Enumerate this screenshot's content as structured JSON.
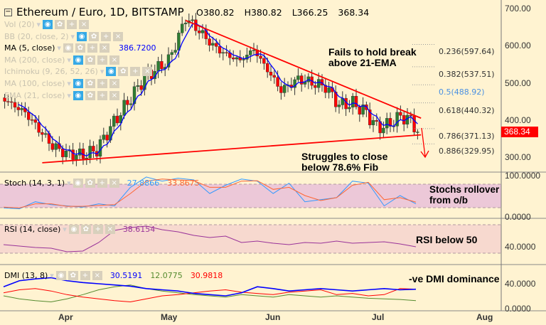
{
  "header": {
    "title": "Ethereum / Euro, 1D, BITSTAMP",
    "open": "O380.82",
    "high": "H380.82",
    "low": "L366.25",
    "close": "368.34"
  },
  "legend": [
    {
      "label": "Vol (20)",
      "active": false,
      "value": ""
    },
    {
      "label": "BB (20, close, 2)",
      "active": false,
      "value": ""
    },
    {
      "label": "MA (5, close)",
      "active": true,
      "value": "386.7200"
    },
    {
      "label": "MA (200, close)",
      "active": false,
      "value": ""
    },
    {
      "label": "Ichimoku (9, 26, 52, 26)",
      "active": false,
      "value": ""
    },
    {
      "label": "MA (100, close)",
      "active": false,
      "value": ""
    },
    {
      "label": "EMA (21, close)",
      "active": false,
      "value": ""
    }
  ],
  "colors": {
    "up": "#2e7d32",
    "down": "#ff0000",
    "ma": "#0000ff",
    "trendline": "#ff0000",
    "fib05": "#4a90e2",
    "stochK": "#3399ff",
    "stochD": "#ff6633",
    "rsi": "#993399",
    "dmi_adx": "#0000ff",
    "dmi_plus": "#558b2f",
    "dmi_minus": "#ff0000",
    "price_badge": "#ff0000"
  },
  "price_axis": {
    "ticks": [
      "700.00",
      "600.00",
      "500.00",
      "400.00",
      "300.00"
    ],
    "current": "368.34"
  },
  "fib_levels": [
    {
      "label": "0.236(597.64)",
      "price": 597.64
    },
    {
      "label": "0.382(537.51)",
      "price": 537.51
    },
    {
      "label": "0.5(488.92)",
      "price": 488.92
    },
    {
      "label": "0.618(440.32)",
      "price": 440.32
    },
    {
      "label": "0.786(371.13)",
      "price": 371.13
    },
    {
      "label": "0.886(329.95)",
      "price": 329.95
    }
  ],
  "annotations": {
    "top": [
      "Fails to hold break",
      "above 21-EMA"
    ],
    "bottom": [
      "Struggles to close",
      "below 78.6% Fib"
    ],
    "stoch": [
      "Stochs rollover",
      "from o/b"
    ],
    "rsi": "RSI below 50",
    "dmi": "-ve DMI dominance"
  },
  "stoch": {
    "label": "Stoch (14, 3, 1)",
    "k": "27.8866",
    "d": "33.8675",
    "axis": [
      "100.0000",
      "0.0000"
    ]
  },
  "rsi": {
    "label": "RSI (14, close)",
    "value": "38.6154",
    "axis": [
      "40.0000"
    ]
  },
  "dmi": {
    "label": "DMI (13, 8)",
    "adx": "30.5191",
    "plus": "12.0775",
    "minus": "30.9818",
    "axis": [
      "40.0000",
      "0.0000"
    ]
  },
  "x_axis": [
    "Apr",
    "May",
    "Jun",
    "Jul",
    "Aug"
  ],
  "chart_data": {
    "type": "candlestick",
    "close_path": [
      [
        "2018-03-13",
        460
      ],
      [
        "2018-03-20",
        420
      ],
      [
        "2018-03-28",
        330
      ],
      [
        "2018-04-01",
        310
      ],
      [
        "2018-04-06",
        305
      ],
      [
        "2018-04-10",
        320
      ],
      [
        "2018-04-14",
        380
      ],
      [
        "2018-04-20",
        460
      ],
      [
        "2018-04-24",
        515
      ],
      [
        "2018-04-28",
        540
      ],
      [
        "2018-05-01",
        560
      ],
      [
        "2018-05-04",
        625
      ],
      [
        "2018-05-06",
        675
      ],
      [
        "2018-05-10",
        640
      ],
      [
        "2018-05-14",
        600
      ],
      [
        "2018-05-18",
        575
      ],
      [
        "2018-05-22",
        560
      ],
      [
        "2018-05-26",
        590
      ],
      [
        "2018-05-30",
        535
      ],
      [
        "2018-06-03",
        480
      ],
      [
        "2018-06-08",
        510
      ],
      [
        "2018-06-12",
        500
      ],
      [
        "2018-06-16",
        490
      ],
      [
        "2018-06-20",
        440
      ],
      [
        "2018-06-24",
        445
      ],
      [
        "2018-06-28",
        420
      ],
      [
        "2018-07-01",
        380
      ],
      [
        "2018-07-04",
        385
      ],
      [
        "2018-07-08",
        410
      ],
      [
        "2018-07-11",
        400
      ],
      [
        "2018-07-13",
        368
      ]
    ],
    "trendline_upper": [
      [
        "2018-05-06",
        668
      ],
      [
        "2018-07-14",
        405
      ]
    ],
    "trendline_lower": [
      [
        "2018-03-25",
        285
      ],
      [
        "2018-07-14",
        360
      ]
    ],
    "stoch_k": [
      20,
      18,
      35,
      28,
      25,
      22,
      30,
      25,
      70,
      95,
      85,
      92,
      88,
      55,
      75,
      90,
      85,
      55,
      80,
      35,
      40,
      45,
      85,
      80,
      25,
      50,
      30
    ],
    "stoch_d": [
      22,
      20,
      30,
      30,
      24,
      24,
      26,
      28,
      55,
      85,
      90,
      88,
      86,
      70,
      70,
      85,
      86,
      65,
      70,
      50,
      38,
      45,
      75,
      82,
      40,
      45,
      34
    ],
    "rsi": [
      42,
      40,
      38,
      37,
      32,
      33,
      45,
      62,
      66,
      68,
      63,
      60,
      55,
      52,
      54,
      45,
      47,
      44,
      42,
      45,
      44,
      47,
      44,
      45,
      46,
      43,
      39
    ],
    "adx": [
      35,
      45,
      48,
      50,
      45,
      42,
      40,
      38,
      36,
      32,
      30,
      28,
      24,
      22,
      20,
      25,
      35,
      32,
      28,
      30,
      32,
      30,
      28,
      30,
      32,
      30,
      31
    ],
    "dmi_plus": [
      20,
      15,
      12,
      10,
      15,
      22,
      30,
      35,
      38,
      32,
      28,
      25,
      22,
      20,
      18,
      22,
      20,
      18,
      22,
      20,
      18,
      20,
      18,
      16,
      15,
      14,
      12
    ],
    "dmi_minus": [
      25,
      30,
      32,
      28,
      22,
      18,
      15,
      12,
      10,
      15,
      20,
      22,
      25,
      28,
      30,
      26,
      24,
      22,
      26,
      28,
      30,
      22,
      24,
      20,
      22,
      32,
      31
    ]
  }
}
